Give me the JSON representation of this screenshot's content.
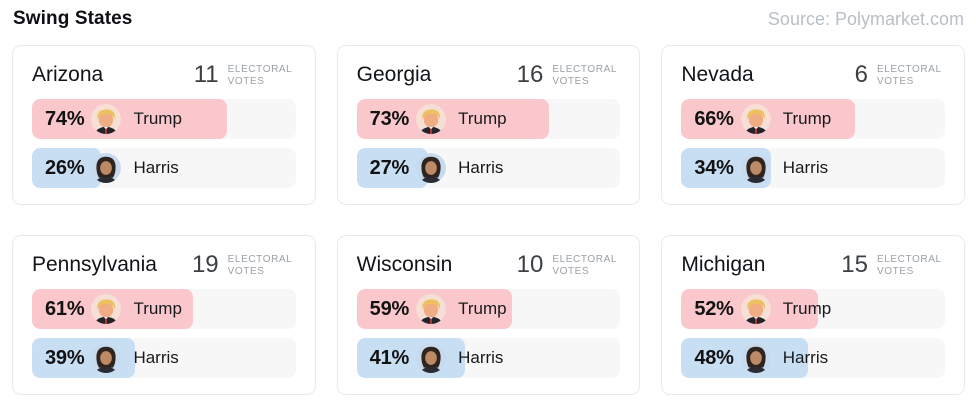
{
  "header": {
    "title": "Swing States",
    "source": "Source: Polymarket.com"
  },
  "electoral_votes_label": "Electoral Votes",
  "colors": {
    "trump_fill": "#fac8cc",
    "harris_fill": "#c8def3",
    "bar_track": "#f7f7f8",
    "card_border": "#e9eaeb",
    "ev_label_gray": "#9aa1a8",
    "source_gray": "#b9bfc8"
  },
  "states": [
    {
      "name": "Arizona",
      "electoral_votes": "11",
      "trump": {
        "pct": 74,
        "pct_label": "74%",
        "name": "Trump"
      },
      "harris": {
        "pct": 26,
        "pct_label": "26%",
        "name": "Harris"
      }
    },
    {
      "name": "Georgia",
      "electoral_votes": "16",
      "trump": {
        "pct": 73,
        "pct_label": "73%",
        "name": "Trump"
      },
      "harris": {
        "pct": 27,
        "pct_label": "27%",
        "name": "Harris"
      }
    },
    {
      "name": "Nevada",
      "electoral_votes": "6",
      "trump": {
        "pct": 66,
        "pct_label": "66%",
        "name": "Trump"
      },
      "harris": {
        "pct": 34,
        "pct_label": "34%",
        "name": "Harris"
      }
    },
    {
      "name": "Pennsylvania",
      "electoral_votes": "19",
      "trump": {
        "pct": 61,
        "pct_label": "61%",
        "name": "Trump"
      },
      "harris": {
        "pct": 39,
        "pct_label": "39%",
        "name": "Harris"
      }
    },
    {
      "name": "Wisconsin",
      "electoral_votes": "10",
      "trump": {
        "pct": 59,
        "pct_label": "59%",
        "name": "Trump"
      },
      "harris": {
        "pct": 41,
        "pct_label": "41%",
        "name": "Harris"
      }
    },
    {
      "name": "Michigan",
      "electoral_votes": "15",
      "trump": {
        "pct": 52,
        "pct_label": "52%",
        "name": "Trump"
      },
      "harris": {
        "pct": 48,
        "pct_label": "48%",
        "name": "Harris"
      }
    }
  ],
  "chart_data": {
    "type": "bar",
    "title": "Swing States",
    "subtitle": "Election betting odds per swing state",
    "source": "Source: Polymarket.com",
    "categories": [
      "Arizona",
      "Georgia",
      "Nevada",
      "Pennsylvania",
      "Wisconsin",
      "Michigan"
    ],
    "electoral_votes": [
      11,
      16,
      6,
      19,
      10,
      15
    ],
    "series": [
      {
        "name": "Trump",
        "values": [
          74,
          73,
          66,
          61,
          59,
          52
        ],
        "color": "#fac8cc"
      },
      {
        "name": "Harris",
        "values": [
          26,
          27,
          34,
          39,
          41,
          48
        ],
        "color": "#c8def3"
      }
    ],
    "unit": "%",
    "value_range": [
      0,
      100
    ],
    "orientation": "horizontal",
    "grid": false,
    "legend": "inline-on-bars"
  }
}
